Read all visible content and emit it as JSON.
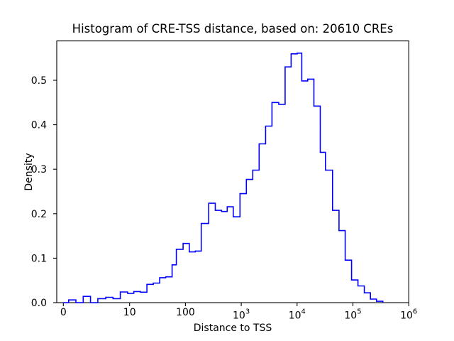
{
  "figure": {
    "background": "#ffffff",
    "axes_color": "#000000"
  },
  "chart_data": {
    "type": "histogram",
    "histtype": "step",
    "title": "Histogram of CRE-TSS distance, based on: 20610 CREs",
    "xlabel": "Distance to TSS",
    "ylabel": "Density",
    "n_samples": 20610,
    "line_color": "#0000ff",
    "xscale": "symlog",
    "grid": false,
    "legend": null,
    "ylim": [
      0,
      0.588
    ],
    "yticks": [
      {
        "value": 0.0,
        "label": "0.0"
      },
      {
        "value": 0.1,
        "label": "0.1"
      },
      {
        "value": 0.2,
        "label": "0.2"
      },
      {
        "value": 0.3,
        "label": "0.3"
      },
      {
        "value": 0.4,
        "label": "0.4"
      },
      {
        "value": 0.5,
        "label": "0.5"
      }
    ],
    "xticks": [
      {
        "value": 0,
        "label": "0"
      },
      {
        "value": 10,
        "label": "10"
      },
      {
        "value": 100,
        "label": "100"
      },
      {
        "value": 1000,
        "label": "10",
        "exponent": "3"
      },
      {
        "value": 10000,
        "label": "10",
        "exponent": "4"
      },
      {
        "value": 100000,
        "label": "10",
        "exponent": "5"
      },
      {
        "value": 1000000,
        "label": "10",
        "exponent": "6"
      }
    ],
    "bin_edges": [
      0,
      0.8,
      1.9,
      3.0,
      4.1,
      5.2,
      6.4,
      7.5,
      8.6,
      9.7,
      11.9,
      15.7,
      20.4,
      26.6,
      34.6,
      44.3,
      57.7,
      68.8,
      90.9,
      117,
      150,
      192,
      261,
      343,
      443,
      560,
      718,
      949,
      1235,
      1608,
      2093,
      2725,
      3547,
      4687,
      6103,
      7830,
      10040,
      12120,
      15500,
      20010,
      26040,
      32270,
      43240,
      56300,
      72650,
      94580,
      123000,
      160300,
      205700,
      263900,
      343600
    ],
    "densities": [
      0,
      0.006,
      0,
      0.014,
      0,
      0.009,
      0.012,
      0.009,
      0.024,
      0.021,
      0.025,
      0.0235,
      0.041,
      0.044,
      0.056,
      0.058,
      0.085,
      0.12,
      0.133,
      0.114,
      0.116,
      0.178,
      0.2235,
      0.2075,
      0.205,
      0.2155,
      0.193,
      0.245,
      0.277,
      0.298,
      0.357,
      0.397,
      0.45,
      0.446,
      0.53,
      0.5595,
      0.561,
      0.4985,
      0.5025,
      0.442,
      0.338,
      0.298,
      0.2075,
      0.162,
      0.0955,
      0.051,
      0.0375,
      0.022,
      0.008,
      0.003
    ]
  }
}
